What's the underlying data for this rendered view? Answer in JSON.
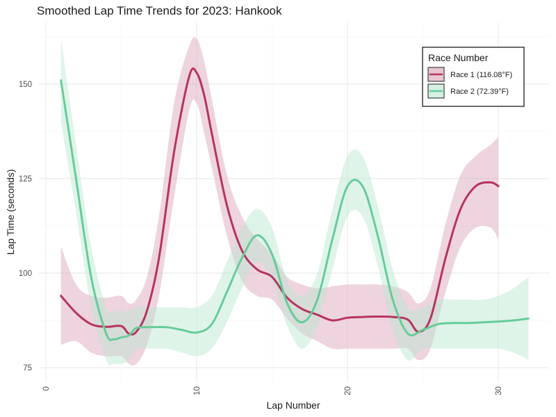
{
  "chart_data": {
    "type": "line",
    "title": "Smoothed Lap Time Trends for 2023: Hankook",
    "xlabel": "Lap Number",
    "ylabel": "Lap Time (seconds)",
    "xlim": [
      0,
      32
    ],
    "ylim": [
      73,
      165
    ],
    "x_ticks": [
      0,
      10,
      20,
      30
    ],
    "y_ticks": [
      75,
      100,
      125,
      150
    ],
    "grid": true,
    "legend": {
      "title": "Race Number",
      "position": "top-right"
    },
    "series": [
      {
        "name": "Race 1 (116.08°F)",
        "color": "#b5335f",
        "band_color": "#d9a0b5",
        "points": [
          [
            1,
            94,
            81,
            107
          ],
          [
            2,
            89.5,
            82,
            97
          ],
          [
            3,
            86.5,
            79,
            94
          ],
          [
            4,
            85.8,
            78,
            93.5
          ],
          [
            5,
            86,
            78,
            94
          ],
          [
            5.5,
            84,
            76,
            92
          ],
          [
            6,
            84.5,
            76,
            93
          ],
          [
            6.7,
            90,
            81,
            99
          ],
          [
            7.5,
            104,
            94,
            115
          ],
          [
            8.5,
            132,
            120,
            145
          ],
          [
            9.5,
            152,
            143,
            160
          ],
          [
            10,
            153,
            145,
            162
          ],
          [
            10.5,
            147,
            137,
            156
          ],
          [
            11,
            137,
            128,
            146
          ],
          [
            12,
            118,
            110,
            126
          ],
          [
            13,
            106,
            98,
            115
          ],
          [
            14,
            101,
            94,
            109
          ],
          [
            15,
            99,
            93,
            105
          ],
          [
            16,
            93.5,
            88,
            99
          ],
          [
            17,
            90.5,
            84,
            97
          ],
          [
            18,
            89,
            82,
            96
          ],
          [
            19,
            87.5,
            80,
            96.5
          ],
          [
            20,
            88.2,
            80,
            97
          ],
          [
            21,
            88.4,
            80,
            97
          ],
          [
            22,
            88.5,
            80,
            97
          ],
          [
            23,
            88.4,
            80,
            96.5
          ],
          [
            24,
            87.7,
            80,
            95
          ],
          [
            24.7,
            84.5,
            77,
            92
          ],
          [
            25.5,
            88,
            80,
            96
          ],
          [
            26.5,
            104,
            95,
            113
          ],
          [
            27.5,
            117,
            107,
            126
          ],
          [
            28.5,
            123,
            112,
            131
          ],
          [
            29.5,
            124,
            112,
            134
          ],
          [
            30,
            123,
            109,
            136
          ]
        ]
      },
      {
        "name": "Race 2 (72.39°F)",
        "color": "#66cc99",
        "band_color": "#b8e6cf",
        "points": [
          [
            1,
            151,
            140,
            162
          ],
          [
            2,
            125,
            116,
            134
          ],
          [
            3,
            99,
            91,
            107
          ],
          [
            4,
            84,
            77,
            91
          ],
          [
            4.5,
            82.5,
            76,
            90
          ],
          [
            5,
            83,
            76,
            90
          ],
          [
            5.5,
            83.5,
            77,
            90
          ],
          [
            6,
            85.5,
            80,
            91
          ],
          [
            7,
            85.7,
            80,
            91
          ],
          [
            8,
            85.7,
            80,
            91
          ],
          [
            9,
            85,
            79,
            91
          ],
          [
            10,
            84.3,
            78,
            91
          ],
          [
            11,
            86.5,
            80,
            94
          ],
          [
            12,
            95,
            87,
            103
          ],
          [
            13,
            104,
            96,
            112
          ],
          [
            14,
            110,
            103,
            117
          ],
          [
            15,
            105,
            98,
            112
          ],
          [
            16,
            92,
            86,
            98
          ],
          [
            17,
            87,
            80,
            94
          ],
          [
            18,
            93,
            86,
            100
          ],
          [
            19,
            109,
            101,
            117
          ],
          [
            20,
            123,
            115,
            131
          ],
          [
            21,
            123,
            115,
            131
          ],
          [
            22,
            110,
            102,
            118
          ],
          [
            23,
            93,
            85,
            101
          ],
          [
            24,
            84,
            77,
            91
          ],
          [
            25,
            85,
            80,
            91
          ],
          [
            26,
            86.5,
            80,
            93
          ],
          [
            27,
            86.8,
            80,
            93
          ],
          [
            28,
            86.8,
            80,
            93
          ],
          [
            29,
            87,
            80,
            93
          ],
          [
            30,
            87.2,
            80,
            94
          ],
          [
            31,
            87.5,
            79,
            96
          ],
          [
            32,
            88,
            77,
            99
          ]
        ]
      }
    ]
  }
}
